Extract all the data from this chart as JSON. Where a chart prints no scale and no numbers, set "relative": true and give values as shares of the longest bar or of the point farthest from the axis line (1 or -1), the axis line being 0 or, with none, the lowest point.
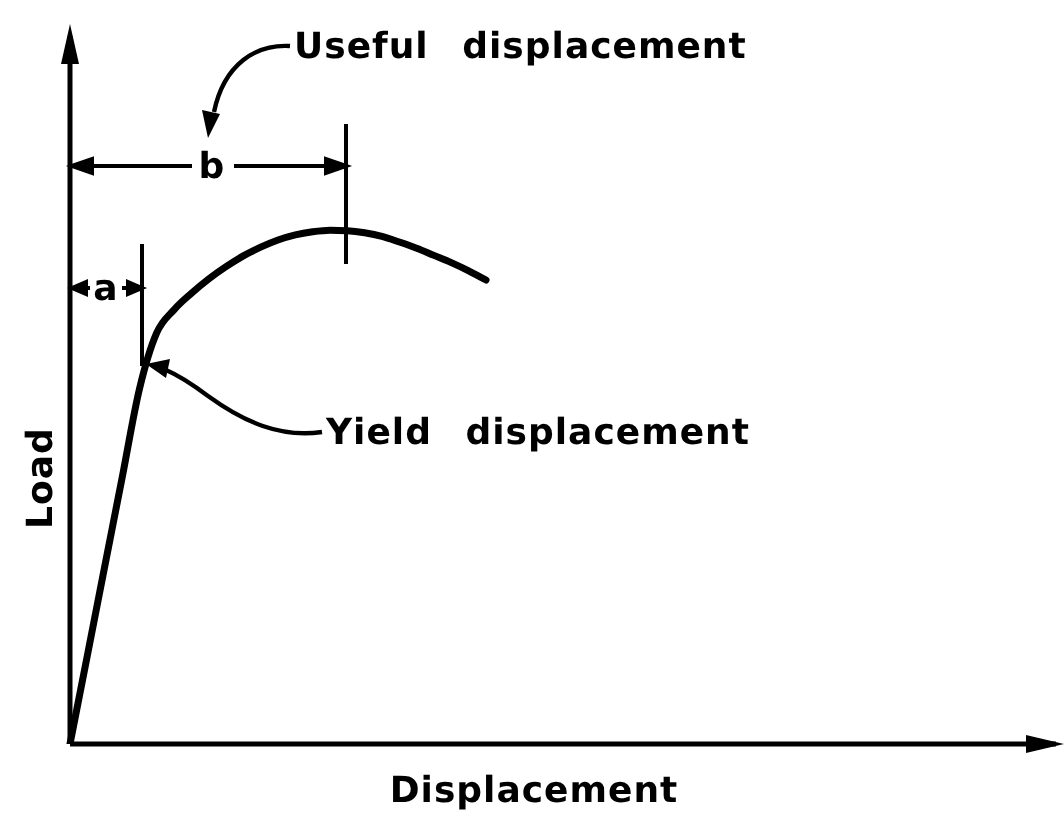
{
  "chart_data": {
    "type": "line",
    "xlabel": "Displacement",
    "ylabel": "Load",
    "categories": [
      null,
      null,
      null,
      null,
      null,
      null,
      null,
      null,
      null,
      null,
      null,
      null,
      null,
      null,
      null,
      null,
      null,
      null,
      null,
      null,
      null,
      null,
      null,
      null,
      null
    ],
    "values": [
      0,
      0.172,
      0.345,
      0.517,
      0.69,
      0.8,
      0.845,
      0.877,
      0.905,
      0.929,
      0.95,
      0.967,
      0.981,
      0.991,
      0.997,
      1,
      0.999,
      0.995,
      0.988,
      0.977,
      0.965,
      0.951,
      0.937,
      0.921,
      0.903
    ],
    "color": "#000000",
    "relative": true,
    "annotations": [
      "Useful displacement",
      "b",
      "a",
      "Yield displacement"
    ]
  }
}
